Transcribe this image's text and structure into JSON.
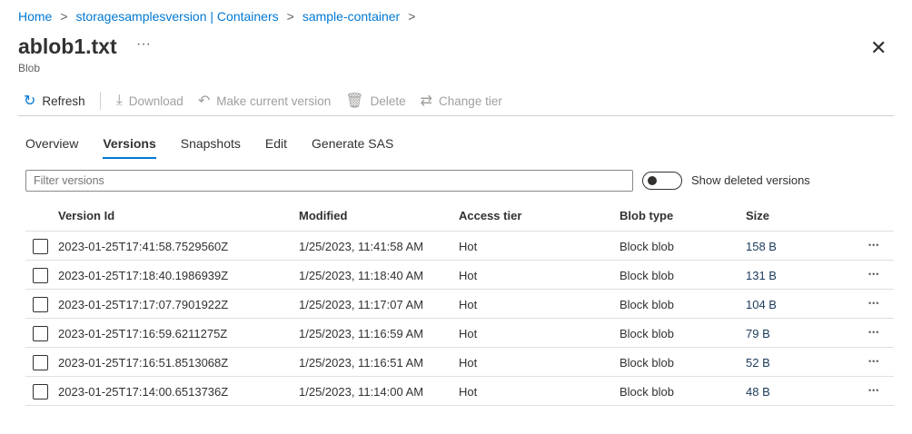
{
  "breadcrumb": [
    "Home",
    "storagesamplesversion | Containers",
    "sample-container"
  ],
  "title": "ablob1.txt",
  "subtitle": "Blob",
  "toolbar": {
    "refresh": "Refresh",
    "download": "Download",
    "make_current": "Make current version",
    "delete": "Delete",
    "change_tier": "Change tier"
  },
  "tabs": [
    "Overview",
    "Versions",
    "Snapshots",
    "Edit",
    "Generate SAS"
  ],
  "active_tab": "Versions",
  "filter": {
    "placeholder": "Filter versions",
    "value": ""
  },
  "toggle": {
    "label": "Show deleted versions",
    "on": false
  },
  "columns": [
    "Version Id",
    "Modified",
    "Access tier",
    "Blob type",
    "Size"
  ],
  "rows": [
    [
      "2023-01-25T17:41:58.7529560Z",
      "1/25/2023, 11:41:58 AM",
      "Hot",
      "Block blob",
      "158 B"
    ],
    [
      "2023-01-25T17:18:40.1986939Z",
      "1/25/2023, 11:18:40 AM",
      "Hot",
      "Block blob",
      "131 B"
    ],
    [
      "2023-01-25T17:17:07.7901922Z",
      "1/25/2023, 11:17:07 AM",
      "Hot",
      "Block blob",
      "104 B"
    ],
    [
      "2023-01-25T17:16:59.6211275Z",
      "1/25/2023, 11:16:59 AM",
      "Hot",
      "Block blob",
      "79 B"
    ],
    [
      "2023-01-25T17:16:51.8513068Z",
      "1/25/2023, 11:16:51 AM",
      "Hot",
      "Block blob",
      "52 B"
    ],
    [
      "2023-01-25T17:14:00.6513736Z",
      "1/25/2023, 11:14:00 AM",
      "Hot",
      "Block blob",
      "48 B"
    ]
  ],
  "colors": {
    "accent": "#0078d4",
    "text": "#323130",
    "disabled": "#a19f9d"
  }
}
